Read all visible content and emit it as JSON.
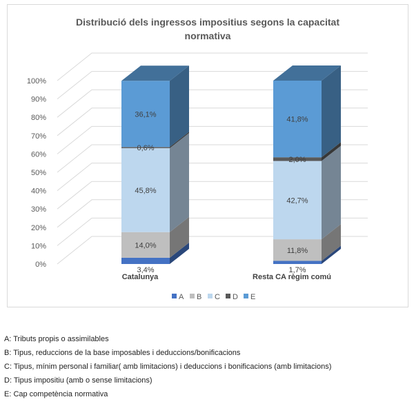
{
  "chart_data": {
    "type": "bar",
    "stacked": true,
    "percent": true,
    "three_d": true,
    "title": "Distribució dels ingressos impositius segons la capacitat normativa",
    "categories": [
      "Catalunya",
      "Resta CA règim comú"
    ],
    "y_ticks": [
      "0%",
      "10%",
      "20%",
      "30%",
      "40%",
      "50%",
      "60%",
      "70%",
      "80%",
      "90%",
      "100%"
    ],
    "ylim": [
      0,
      100
    ],
    "grid": true,
    "legend_position": "bottom",
    "series": [
      {
        "name": "A",
        "color": "#4472c4",
        "values": [
          3.4,
          1.7
        ],
        "labels": [
          "3,4%",
          "1,7%"
        ]
      },
      {
        "name": "B",
        "color": "#bfbfbf",
        "values": [
          14.0,
          11.8
        ],
        "labels": [
          "14,0%",
          "11,8%"
        ]
      },
      {
        "name": "C",
        "color": "#bdd7ee",
        "values": [
          45.8,
          42.7
        ],
        "labels": [
          "45,8%",
          "42,7%"
        ]
      },
      {
        "name": "D",
        "color": "#595959",
        "values": [
          0.6,
          2.0
        ],
        "labels": [
          "0,6%",
          "2,0%"
        ]
      },
      {
        "name": "E",
        "color": "#5b9bd5",
        "values": [
          36.1,
          41.8
        ],
        "labels": [
          "36,1%",
          "41,8%"
        ]
      }
    ]
  },
  "notes": [
    "A: Tributs propis o assimilables",
    "B: Tipus, reduccions de la base imposables i deduccions/bonificacions",
    "C: Tipus, mínim personal i familiar( amb limitacions) i deduccions i bonificacions (amb limitacions)",
    "D: Tipus impositiu (amb o sense limitacions)",
    "E: Cap competència normativa"
  ]
}
